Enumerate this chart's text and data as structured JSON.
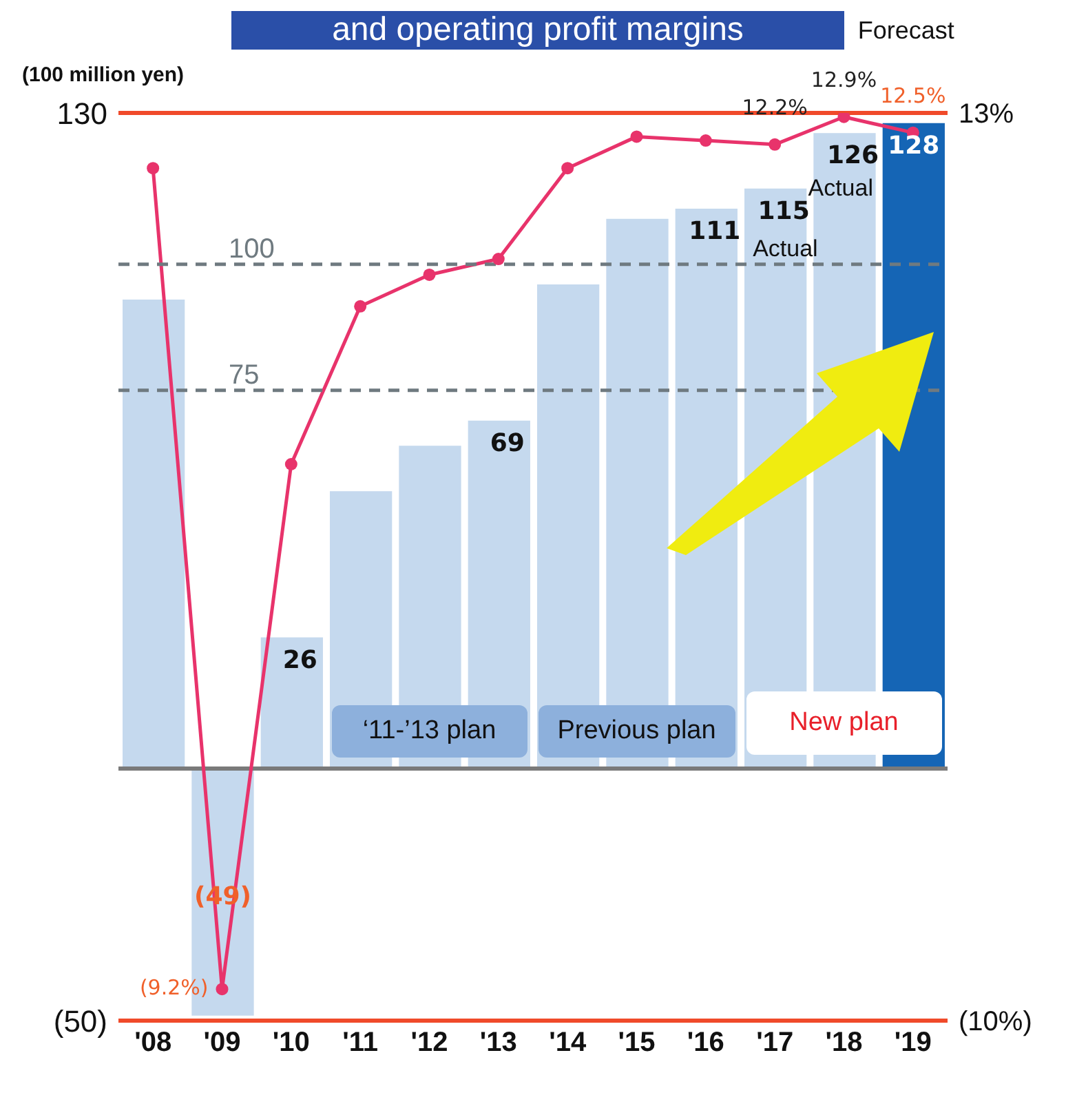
{
  "chart_data": {
    "type": "bar",
    "title": "and operating profit margins",
    "ylabel": "(100 million yen)",
    "categories": [
      "'08",
      "'09",
      "'10",
      "'11",
      "'12",
      "'13",
      "'14",
      "'15",
      "'16",
      "'17",
      "'18",
      "'19"
    ],
    "series": [
      {
        "colors": [
          "#c5d9ee",
          "#c5d9ee",
          "#c5d9ee",
          "#c5d9ee",
          "#c5d9ee",
          "#c5d9ee",
          "#c5d9ee",
          "#c5d9ee",
          "#c5d9ee",
          "#c5d9ee",
          "#c5d9ee",
          "#1565b5"
        ],
        "values": [
          93,
          -49,
          26,
          55,
          64,
          69,
          96,
          109,
          111,
          115,
          126,
          128
        ],
        "value_labels": [
          null,
          "(49)",
          "26",
          null,
          null,
          "69",
          null,
          null,
          "111",
          "115",
          "126",
          "128"
        ]
      },
      {
        "type": "line",
        "axis": "y2",
        "color": "#e8336b",
        "values": [
          11.6,
          -9.2,
          4.1,
          8.1,
          8.9,
          9.3,
          11.6,
          12.4,
          12.3,
          12.2,
          12.9,
          12.5
        ],
        "value_labels": [
          null,
          "(9.2%)",
          null,
          null,
          null,
          null,
          null,
          null,
          null,
          "12.2%",
          "12.9%",
          "12.5%"
        ]
      }
    ],
    "marker": "circle",
    "line_style": "solid",
    "grid": false,
    "ylim": [
      -50,
      130
    ],
    "yticks": [
      130,
      {
        "value": -50,
        "label": "(50)"
      }
    ],
    "y2lim": [
      -10,
      13
    ],
    "y2ticks": [
      {
        "value": 13,
        "label": "13%"
      },
      {
        "value": -10,
        "label": "(10%)"
      }
    ],
    "ref_lines": [
      {
        "axis": "y",
        "value": 130,
        "color": "#f04a2a",
        "line_style": "solid"
      },
      {
        "axis": "y",
        "value": 100,
        "label": "100",
        "color": "#6f7a80",
        "line_style": "dashed"
      },
      {
        "axis": "y",
        "value": 75,
        "label": "75",
        "color": "#6f7a80",
        "line_style": "dashed"
      }
    ],
    "annotations": [
      "‘11-’13 plan",
      "Previous plan",
      "New plan",
      "Actual",
      "Actual",
      "Forecast"
    ]
  }
}
